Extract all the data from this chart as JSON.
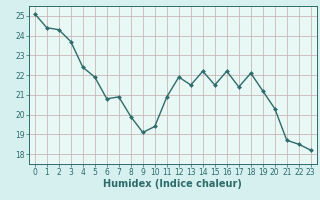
{
  "x": [
    0,
    1,
    2,
    3,
    4,
    5,
    6,
    7,
    8,
    9,
    10,
    11,
    12,
    13,
    14,
    15,
    16,
    17,
    18,
    19,
    20,
    21,
    22,
    23
  ],
  "y": [
    25.1,
    24.4,
    24.3,
    23.7,
    22.4,
    21.9,
    20.8,
    20.9,
    19.9,
    19.1,
    19.4,
    20.9,
    21.9,
    21.5,
    22.2,
    21.5,
    22.2,
    21.4,
    22.1,
    21.2,
    20.3,
    18.7,
    18.5,
    18.2
  ],
  "line_color": "#2e6b6b",
  "marker_color": "#2e6b6b",
  "bg_color": "#d6f0ef",
  "plot_bg_color": "#e8f8f5",
  "grid_color": "#c8b8b8",
  "axis_color": "#2e6b6b",
  "tick_color": "#2e6b6b",
  "xlabel": "Humidex (Indice chaleur)",
  "ylabel": "",
  "ylim": [
    17.5,
    25.5
  ],
  "yticks": [
    18,
    19,
    20,
    21,
    22,
    23,
    24,
    25
  ],
  "xticks": [
    0,
    1,
    2,
    3,
    4,
    5,
    6,
    7,
    8,
    9,
    10,
    11,
    12,
    13,
    14,
    15,
    16,
    17,
    18,
    19,
    20,
    21,
    22,
    23
  ],
  "label_fontsize": 7,
  "tick_fontsize": 5.5
}
